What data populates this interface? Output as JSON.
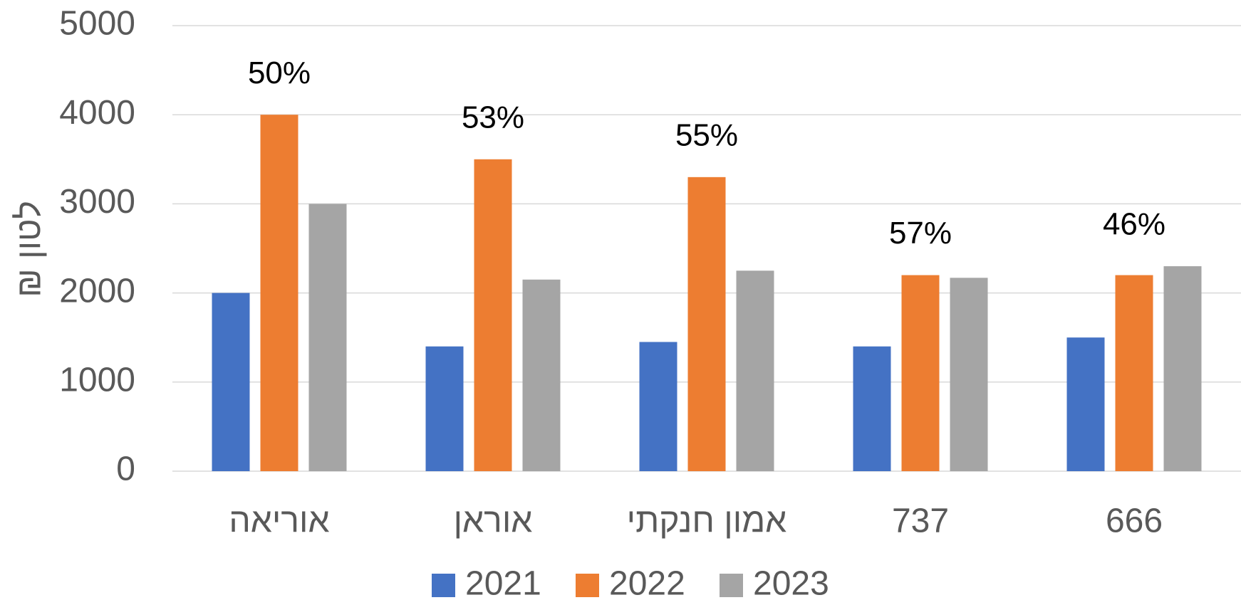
{
  "chart_data": {
    "type": "bar",
    "y_label": "₪ לטון",
    "categories": [
      "אוריאה",
      "אוראן",
      "אמון חנקתי",
      "737",
      "666"
    ],
    "series": [
      {
        "name": "2021",
        "color": "#4472c4",
        "values": [
          2000,
          1400,
          1450,
          1400,
          1500
        ]
      },
      {
        "name": "2022",
        "color": "#ed7d31",
        "values": [
          4000,
          3500,
          3300,
          2200,
          2200
        ]
      },
      {
        "name": "2023",
        "color": "#a5a5a5",
        "values": [
          3000,
          2150,
          2250,
          2170,
          2300
        ]
      }
    ],
    "annotations": [
      "50%",
      "53%",
      "55%",
      "57%",
      "46%"
    ],
    "ylim": [
      0,
      5000
    ],
    "yticks": [
      0,
      1000,
      2000,
      3000,
      4000,
      5000
    ],
    "grid": true,
    "legend": "bottom"
  }
}
